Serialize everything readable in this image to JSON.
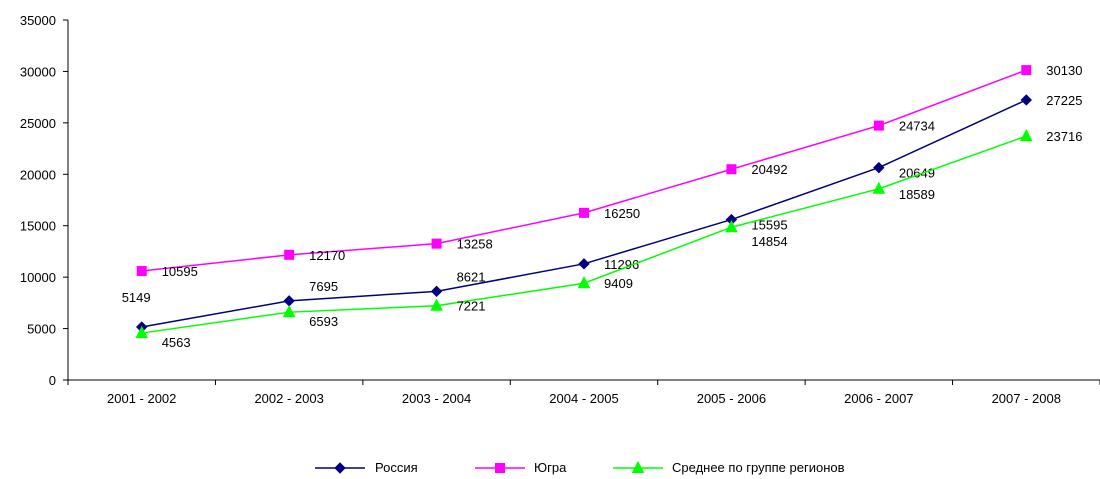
{
  "chart_data": {
    "type": "line",
    "title": "",
    "xlabel": "",
    "ylabel": "",
    "ylim": [
      0,
      35000
    ],
    "yticks": [
      0,
      5000,
      10000,
      15000,
      20000,
      25000,
      30000,
      35000
    ],
    "grid": false,
    "legend_position": "bottom",
    "categories": [
      "2001 - 2002",
      "2002 - 2003",
      "2003 - 2004",
      "2004 - 2005",
      "2005 - 2006",
      "2006 - 2007",
      "2007 - 2008"
    ],
    "series": [
      {
        "name": "Россия",
        "values": [
          5149,
          7695,
          8621,
          11296,
          15595,
          20649,
          27225
        ],
        "color": "#000080",
        "marker": "diamond"
      },
      {
        "name": "Югра",
        "values": [
          10595,
          12170,
          13258,
          16250,
          20492,
          24734,
          30130
        ],
        "color": "#ff00ff",
        "marker": "square"
      },
      {
        "name": "Среднее по группе регионов",
        "values": [
          4563,
          6593,
          7221,
          9409,
          14854,
          18589,
          23716
        ],
        "color": "#00ff00",
        "marker": "triangle"
      }
    ]
  }
}
